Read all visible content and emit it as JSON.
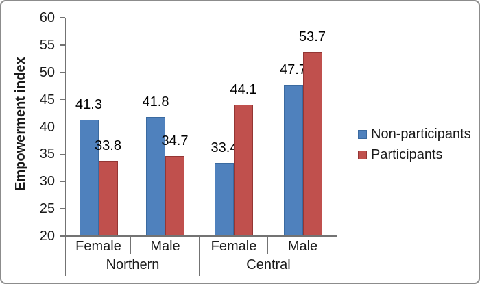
{
  "chart_data": {
    "type": "bar",
    "title": "",
    "ylabel": "Empowerment index",
    "xlabel": "",
    "ylim": [
      20,
      60
    ],
    "yticks": [
      20,
      25,
      30,
      35,
      40,
      45,
      50,
      55,
      60
    ],
    "grid": false,
    "legend_position": "right",
    "value_labels": true,
    "value_label_decimals": 1,
    "groups": [
      {
        "label": "Northern",
        "subcategories": [
          "Female",
          "Male"
        ]
      },
      {
        "label": "Central",
        "subcategories": [
          "Female",
          "Male"
        ]
      }
    ],
    "categories": [
      "Northern Female",
      "Northern Male",
      "Central Female",
      "Central Male"
    ],
    "series": [
      {
        "name": "Non-participants",
        "color": "#4F81BD",
        "border_color": "#3A6AA0",
        "values": [
          41.3,
          41.8,
          33.4,
          47.7
        ]
      },
      {
        "name": "Participants",
        "color": "#C0504D",
        "border_color": "#943634",
        "values": [
          33.8,
          34.7,
          44.1,
          53.7
        ]
      }
    ]
  },
  "colors": {
    "axis_line": "#737373",
    "text": "#1a1a1a",
    "frame_border": "#8c8c8c",
    "background": "#ffffff"
  }
}
